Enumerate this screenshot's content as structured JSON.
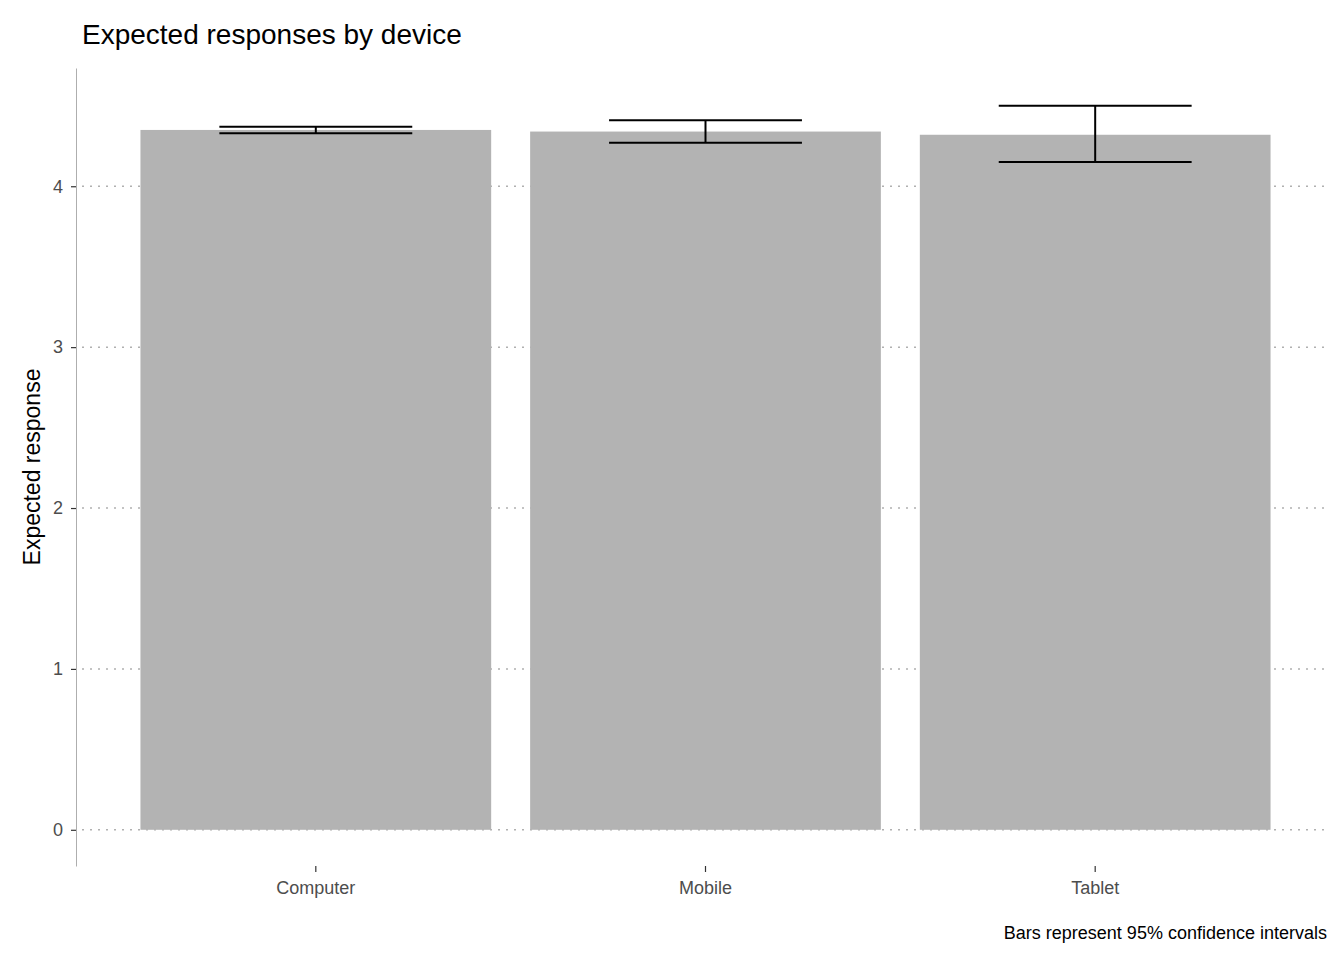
{
  "chart_data": {
    "type": "bar",
    "title": "Expected responses by device",
    "y_label": "Expected response",
    "caption": "Bars represent 95% confidence intervals",
    "categories": [
      "Computer",
      "Mobile",
      "Tablet"
    ],
    "values": [
      4.35,
      4.34,
      4.32
    ],
    "ci_lower": [
      4.33,
      4.27,
      4.15
    ],
    "ci_upper": [
      4.37,
      4.41,
      4.5
    ],
    "color": "#b3b3b3",
    "ylim": [
      -0.225,
      4.735
    ],
    "yticks": [
      0,
      1,
      2,
      3,
      4
    ],
    "grid": true
  }
}
